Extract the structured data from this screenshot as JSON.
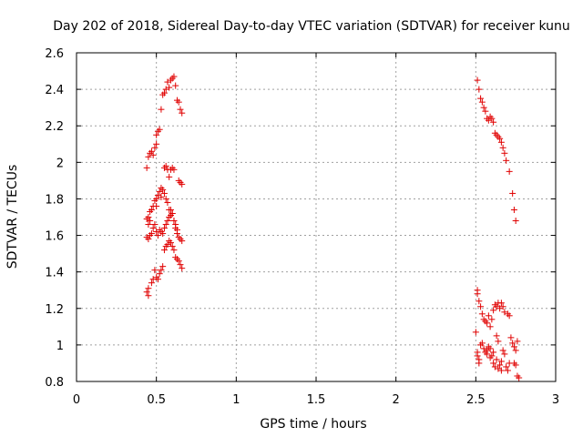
{
  "chart_data": {
    "type": "scatter",
    "title": "Day 202 of 2018, Sidereal Day-to-day VTEC variation (SDTVAR) for receiver kunu",
    "xlabel": "GPS time / hours",
    "ylabel": "SDTVAR / TECUs",
    "xlim": [
      0,
      3
    ],
    "ylim": [
      0.8,
      2.6
    ],
    "xticks": [
      "0",
      "0.5",
      "1",
      "1.5",
      "2",
      "2.5",
      "3"
    ],
    "yticks": [
      "0.8",
      "1",
      "1.2",
      "1.4",
      "1.6",
      "1.8",
      "2",
      "2.2",
      "2.4",
      "2.6"
    ],
    "grid": true,
    "marker": "+",
    "color": "#e00000",
    "series": [
      {
        "name": "SDTVAR",
        "points": [
          [
            0.44,
            1.97
          ],
          [
            0.45,
            2.03
          ],
          [
            0.46,
            2.05
          ],
          [
            0.47,
            2.06
          ],
          [
            0.48,
            2.04
          ],
          [
            0.49,
            2.08
          ],
          [
            0.5,
            2.1
          ],
          [
            0.5,
            2.15
          ],
          [
            0.51,
            2.17
          ],
          [
            0.52,
            2.18
          ],
          [
            0.53,
            2.29
          ],
          [
            0.54,
            2.37
          ],
          [
            0.55,
            2.38
          ],
          [
            0.56,
            2.4
          ],
          [
            0.57,
            2.44
          ],
          [
            0.58,
            2.41
          ],
          [
            0.59,
            2.45
          ],
          [
            0.6,
            2.46
          ],
          [
            0.61,
            2.47
          ],
          [
            0.62,
            2.42
          ],
          [
            0.63,
            2.34
          ],
          [
            0.64,
            2.33
          ],
          [
            0.65,
            2.29
          ],
          [
            0.66,
            2.27
          ],
          [
            0.55,
            1.97
          ],
          [
            0.56,
            1.98
          ],
          [
            0.57,
            1.96
          ],
          [
            0.58,
            1.92
          ],
          [
            0.59,
            1.96
          ],
          [
            0.6,
            1.97
          ],
          [
            0.61,
            1.96
          ],
          [
            0.64,
            1.9
          ],
          [
            0.65,
            1.89
          ],
          [
            0.66,
            1.88
          ],
          [
            0.44,
            1.69
          ],
          [
            0.45,
            1.7
          ],
          [
            0.45,
            1.66
          ],
          [
            0.46,
            1.68
          ],
          [
            0.46,
            1.73
          ],
          [
            0.47,
            1.74
          ],
          [
            0.48,
            1.76
          ],
          [
            0.49,
            1.79
          ],
          [
            0.5,
            1.8
          ],
          [
            0.5,
            1.76
          ],
          [
            0.51,
            1.82
          ],
          [
            0.52,
            1.84
          ],
          [
            0.53,
            1.81
          ],
          [
            0.53,
            1.86
          ],
          [
            0.54,
            1.85
          ],
          [
            0.55,
            1.83
          ],
          [
            0.56,
            1.8
          ],
          [
            0.57,
            1.78
          ],
          [
            0.58,
            1.74
          ],
          [
            0.59,
            1.71
          ],
          [
            0.6,
            1.72
          ],
          [
            0.61,
            1.68
          ],
          [
            0.62,
            1.66
          ],
          [
            0.63,
            1.63
          ],
          [
            0.64,
            1.59
          ],
          [
            0.65,
            1.58
          ],
          [
            0.66,
            1.57
          ],
          [
            0.44,
            1.59
          ],
          [
            0.45,
            1.58
          ],
          [
            0.46,
            1.6
          ],
          [
            0.47,
            1.61
          ],
          [
            0.48,
            1.64
          ],
          [
            0.49,
            1.66
          ],
          [
            0.5,
            1.62
          ],
          [
            0.51,
            1.6
          ],
          [
            0.52,
            1.63
          ],
          [
            0.53,
            1.62
          ],
          [
            0.54,
            1.61
          ],
          [
            0.55,
            1.64
          ],
          [
            0.56,
            1.66
          ],
          [
            0.57,
            1.68
          ],
          [
            0.58,
            1.7
          ],
          [
            0.59,
            1.74
          ],
          [
            0.6,
            1.72
          ],
          [
            0.61,
            1.68
          ],
          [
            0.62,
            1.64
          ],
          [
            0.63,
            1.61
          ],
          [
            0.55,
            1.52
          ],
          [
            0.56,
            1.54
          ],
          [
            0.57,
            1.55
          ],
          [
            0.58,
            1.57
          ],
          [
            0.59,
            1.56
          ],
          [
            0.6,
            1.54
          ],
          [
            0.61,
            1.52
          ],
          [
            0.62,
            1.48
          ],
          [
            0.63,
            1.47
          ],
          [
            0.64,
            1.46
          ],
          [
            0.65,
            1.44
          ],
          [
            0.66,
            1.42
          ],
          [
            0.44,
            1.29
          ],
          [
            0.45,
            1.31
          ],
          [
            0.45,
            1.27
          ],
          [
            0.47,
            1.34
          ],
          [
            0.48,
            1.36
          ],
          [
            0.49,
            1.41
          ],
          [
            0.5,
            1.37
          ],
          [
            0.51,
            1.36
          ],
          [
            0.52,
            1.39
          ],
          [
            0.53,
            1.41
          ],
          [
            0.54,
            1.43
          ],
          [
            2.51,
            2.45
          ],
          [
            2.52,
            2.4
          ],
          [
            2.53,
            2.35
          ],
          [
            2.54,
            2.33
          ],
          [
            2.55,
            2.3
          ],
          [
            2.56,
            2.28
          ],
          [
            2.57,
            2.24
          ],
          [
            2.58,
            2.23
          ],
          [
            2.59,
            2.25
          ],
          [
            2.6,
            2.24
          ],
          [
            2.61,
            2.22
          ],
          [
            2.62,
            2.16
          ],
          [
            2.63,
            2.15
          ],
          [
            2.64,
            2.14
          ],
          [
            2.65,
            2.13
          ],
          [
            2.66,
            2.11
          ],
          [
            2.67,
            2.08
          ],
          [
            2.68,
            2.05
          ],
          [
            2.69,
            2.01
          ],
          [
            2.71,
            1.95
          ],
          [
            2.73,
            1.83
          ],
          [
            2.74,
            1.74
          ],
          [
            2.75,
            1.68
          ],
          [
            2.51,
            1.3
          ],
          [
            2.51,
            1.28
          ],
          [
            2.52,
            1.24
          ],
          [
            2.53,
            1.21
          ],
          [
            2.54,
            1.17
          ],
          [
            2.55,
            1.14
          ],
          [
            2.56,
            1.13
          ],
          [
            2.57,
            1.12
          ],
          [
            2.58,
            1.16
          ],
          [
            2.59,
            1.1
          ],
          [
            2.6,
            1.14
          ],
          [
            2.61,
            1.19
          ],
          [
            2.62,
            1.22
          ],
          [
            2.63,
            1.21
          ],
          [
            2.64,
            1.23
          ],
          [
            2.65,
            1.2
          ],
          [
            2.66,
            1.23
          ],
          [
            2.67,
            1.21
          ],
          [
            2.68,
            1.18
          ],
          [
            2.7,
            1.17
          ],
          [
            2.71,
            1.16
          ],
          [
            2.5,
            1.07
          ],
          [
            2.51,
            0.96
          ],
          [
            2.51,
            0.94
          ],
          [
            2.52,
            0.92
          ],
          [
            2.52,
            0.9
          ],
          [
            2.53,
            1.0
          ],
          [
            2.54,
            1.01
          ],
          [
            2.55,
            0.98
          ],
          [
            2.56,
            0.96
          ],
          [
            2.57,
            0.97
          ],
          [
            2.57,
            0.95
          ],
          [
            2.58,
            0.99
          ],
          [
            2.59,
            0.93
          ],
          [
            2.59,
            0.98
          ],
          [
            2.6,
            0.94
          ],
          [
            2.61,
            0.96
          ],
          [
            2.61,
            0.9
          ],
          [
            2.62,
            0.88
          ],
          [
            2.63,
            0.92
          ],
          [
            2.63,
            1.05
          ],
          [
            2.64,
            1.02
          ],
          [
            2.64,
            0.87
          ],
          [
            2.65,
            0.89
          ],
          [
            2.66,
            0.91
          ],
          [
            2.66,
            0.86
          ],
          [
            2.67,
            0.97
          ],
          [
            2.68,
            0.95
          ],
          [
            2.69,
            0.88
          ],
          [
            2.7,
            0.86
          ],
          [
            2.71,
            0.9
          ],
          [
            2.72,
            1.04
          ],
          [
            2.73,
            1.01
          ],
          [
            2.74,
            0.99
          ],
          [
            2.75,
            0.97
          ],
          [
            2.76,
            1.02
          ],
          [
            2.74,
            0.9
          ],
          [
            2.75,
            0.89
          ],
          [
            2.76,
            0.83
          ],
          [
            2.77,
            0.82
          ]
        ]
      }
    ]
  }
}
